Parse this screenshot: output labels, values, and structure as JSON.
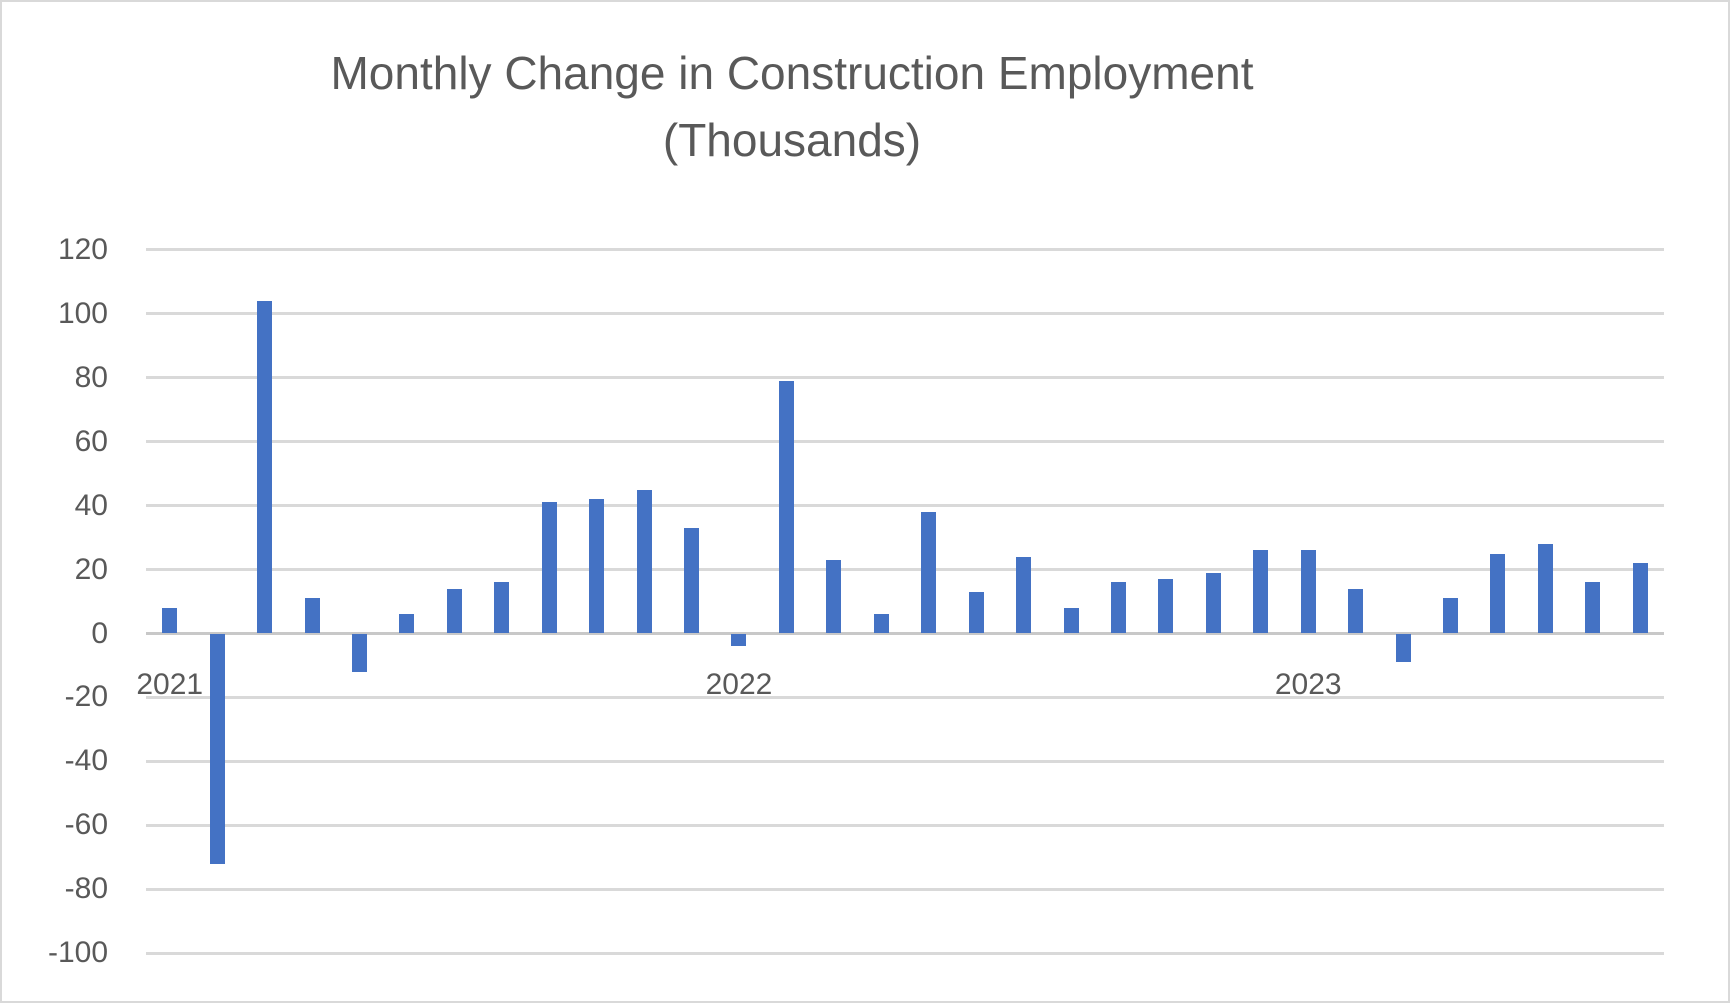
{
  "chart": {
    "title_lines": [
      "Monthly Change in Construction Employment",
      "(Thousands)"
    ],
    "chart_data": {
      "type": "bar",
      "title": "Monthly Change in Construction Employment (Thousands)",
      "xlabel": "",
      "ylabel": "",
      "ylim": [
        -100,
        120
      ],
      "y_ticks": [
        120,
        100,
        80,
        60,
        40,
        20,
        0,
        -20,
        -40,
        -60,
        -80,
        -100
      ],
      "grid": true,
      "legend": false,
      "bar_color": "#4472C4",
      "gridline_color": "#D9D9D9",
      "text_color": "#595959",
      "categories": [
        "2021-01",
        "2021-02",
        "2021-03",
        "2021-04",
        "2021-05",
        "2021-06",
        "2021-07",
        "2021-08",
        "2021-09",
        "2021-10",
        "2021-11",
        "2021-12",
        "2022-01",
        "2022-02",
        "2022-03",
        "2022-04",
        "2022-05",
        "2022-06",
        "2022-07",
        "2022-08",
        "2022-09",
        "2022-10",
        "2022-11",
        "2022-12",
        "2023-01",
        "2023-02",
        "2023-03",
        "2023-04",
        "2023-05",
        "2023-06",
        "2023-07",
        "2023-08"
      ],
      "values": [
        8,
        -72,
        104,
        11,
        -12,
        6,
        14,
        16,
        41,
        42,
        45,
        33,
        -4,
        79,
        23,
        6,
        38,
        13,
        24,
        8,
        16,
        17,
        19,
        26,
        26,
        14,
        -9,
        11,
        25,
        28,
        16,
        22
      ],
      "x_tick_labels": [
        {
          "label": "2021",
          "category_index": 0
        },
        {
          "label": "2022",
          "category_index": 12
        },
        {
          "label": "2023",
          "category_index": 24
        }
      ]
    }
  }
}
